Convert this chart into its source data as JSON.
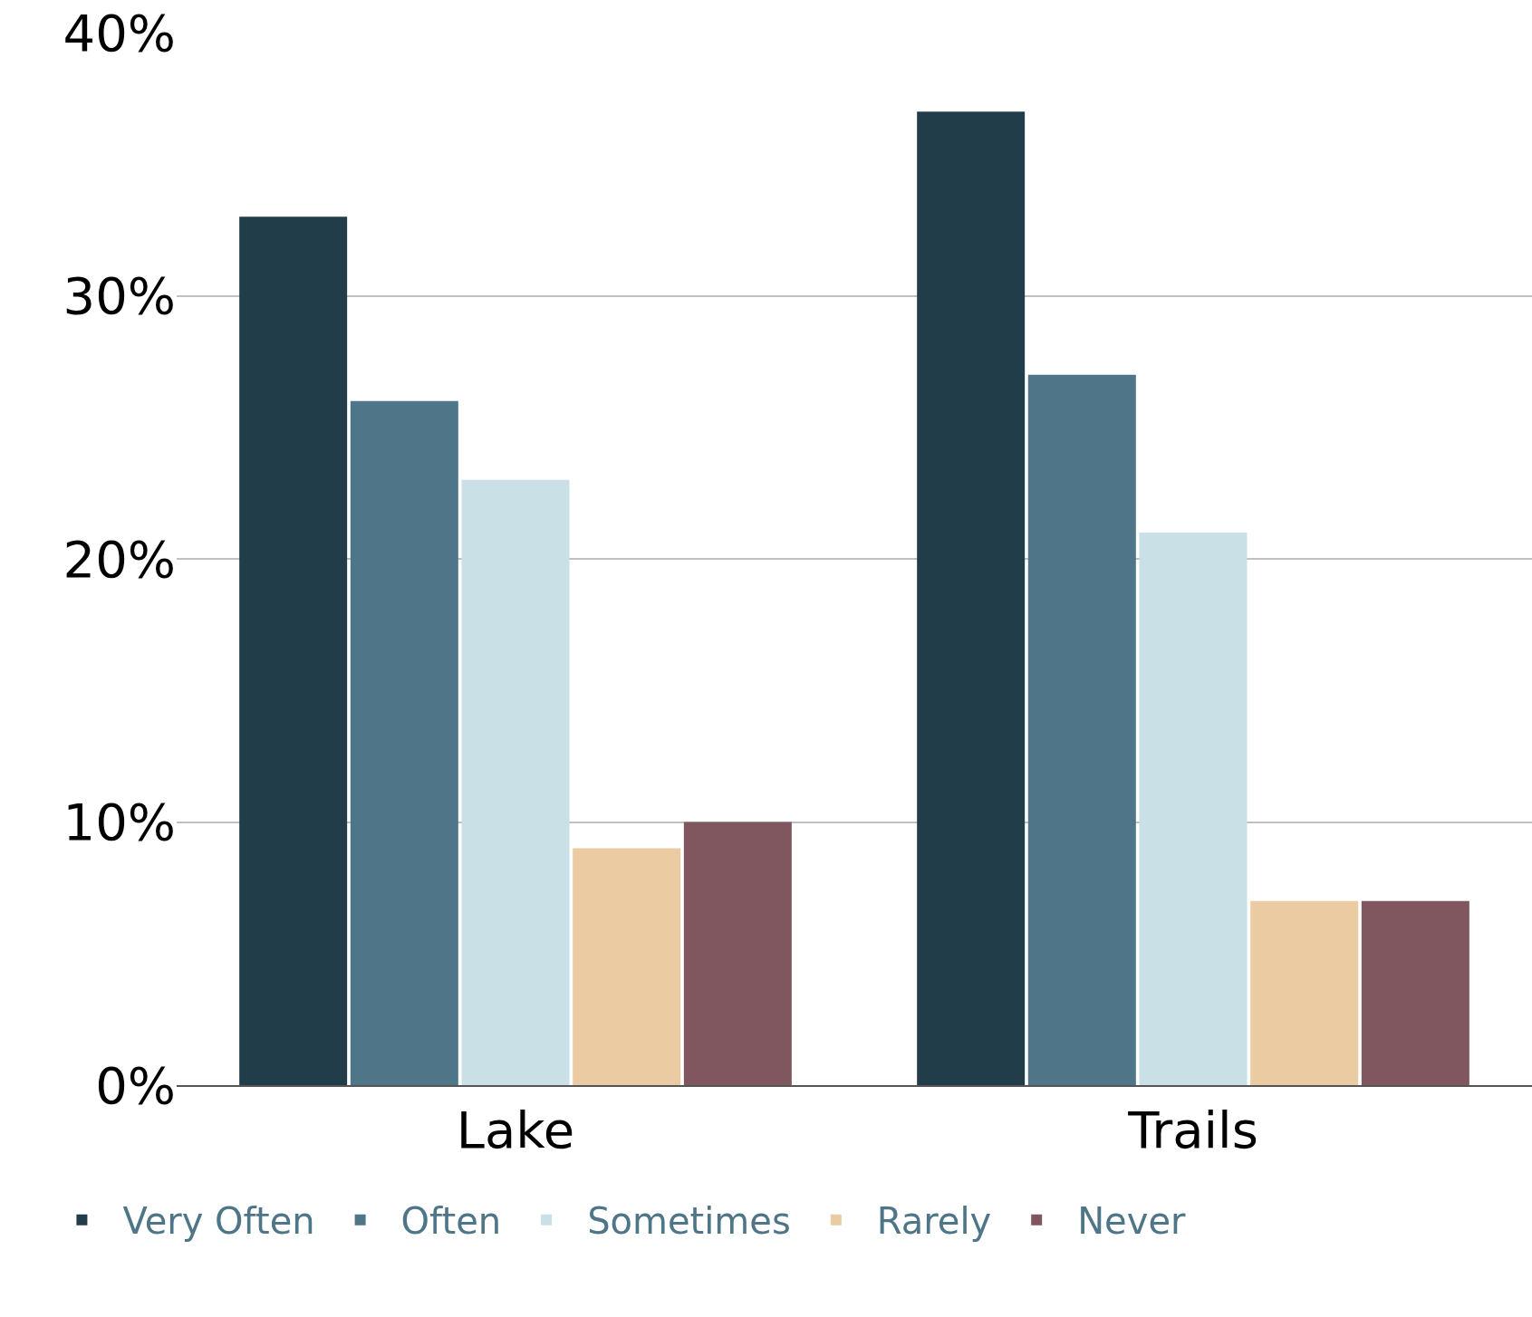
{
  "chart_data": {
    "type": "bar",
    "categories": [
      "Lake",
      "Trails"
    ],
    "series": [
      {
        "name": "Very Often",
        "color": "#213d4a",
        "values": [
          33,
          37
        ]
      },
      {
        "name": "Often",
        "color": "#4f7588",
        "values": [
          26,
          27
        ]
      },
      {
        "name": "Sometimes",
        "color": "#c9e0e6",
        "values": [
          23,
          21
        ]
      },
      {
        "name": "Rarely",
        "color": "#eacba2",
        "values": [
          9,
          7
        ]
      },
      {
        "name": "Never",
        "color": "#81575f",
        "values": [
          10,
          7
        ]
      }
    ],
    "ylim": [
      0,
      40
    ],
    "yticks": [
      {
        "value": 0,
        "label": "0%"
      },
      {
        "value": 10,
        "label": "10%"
      },
      {
        "value": 20,
        "label": "20%"
      },
      {
        "value": 30,
        "label": "30%"
      },
      {
        "value": 40,
        "label": "40%"
      }
    ],
    "grid": "y",
    "legend": "bottom"
  }
}
